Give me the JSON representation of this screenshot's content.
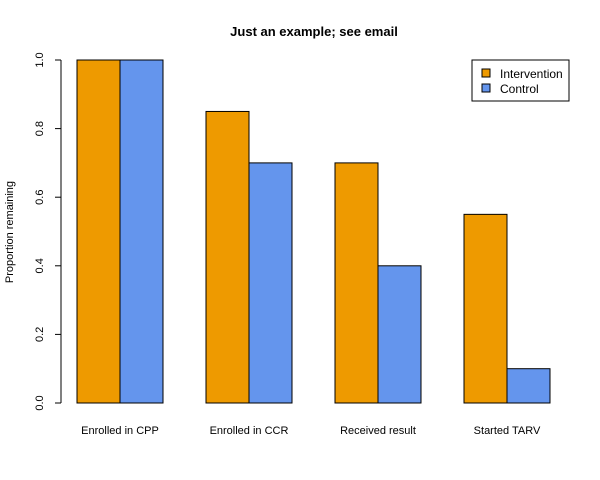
{
  "chart_data": {
    "type": "bar",
    "title": "Just an example; see email",
    "xlabel": "",
    "ylabel": "Proportion remaining",
    "categories": [
      "Enrolled in CPP",
      "Enrolled in CCR",
      "Received result",
      "Started TARV"
    ],
    "series": [
      {
        "name": "Intervention",
        "color": "#EE9A00",
        "values": [
          1.0,
          0.85,
          0.7,
          0.55
        ]
      },
      {
        "name": "Control",
        "color": "#6495ED",
        "values": [
          1.0,
          0.7,
          0.4,
          0.1
        ]
      }
    ],
    "ylim": [
      0,
      1
    ],
    "yticks": [
      "0.0",
      "0.2",
      "0.4",
      "0.6",
      "0.8",
      "1.0"
    ],
    "grid": false,
    "legend": "top-right"
  }
}
